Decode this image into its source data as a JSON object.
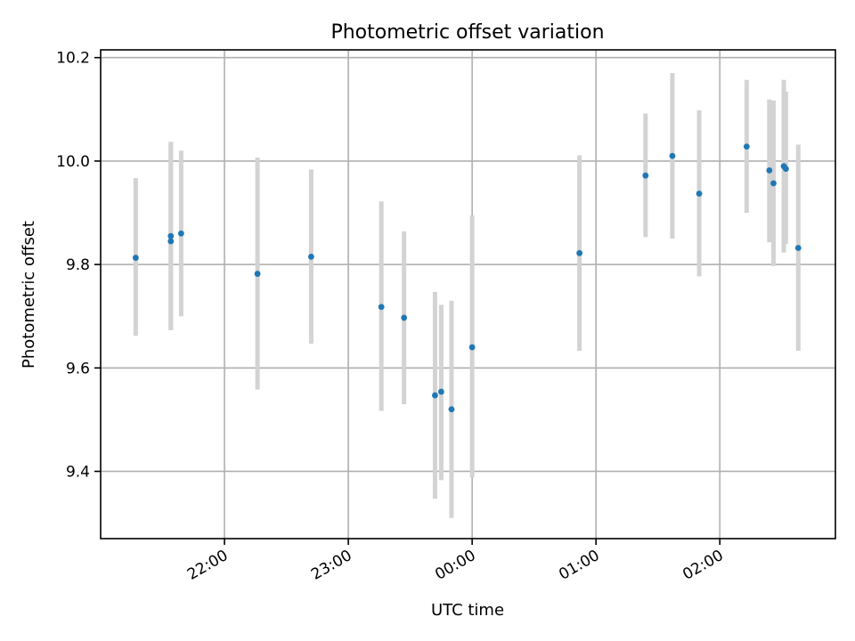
{
  "chart_data": {
    "type": "scatter",
    "title": "Photometric offset variation",
    "xlabel": "UTC time",
    "ylabel": "Photometric offset",
    "x_axis": {
      "kind": "time",
      "start": "21:00",
      "end": "02:56",
      "ticks": [
        "22:00",
        "23:00",
        "00:00",
        "01:00",
        "02:00"
      ],
      "tick_label_rotation_deg": 30
    },
    "ylim": [
      9.27,
      10.215
    ],
    "y_ticks": [
      9.4,
      9.6,
      9.8,
      10.0,
      10.2
    ],
    "y_tick_labels": [
      "9.4",
      "9.6",
      "9.8",
      "10.0",
      "10.2"
    ],
    "grid": true,
    "colors": {
      "point": "#1f77b4",
      "errorbar": "#d3d3d3",
      "grid": "#b0b0b0"
    },
    "series": [
      {
        "points": [
          {
            "x": "21:17",
            "y": 9.813,
            "ylow": 9.662,
            "yhigh": 9.967
          },
          {
            "x": "21:34",
            "y": 9.855,
            "ylow": 9.673,
            "yhigh": 10.037
          },
          {
            "x": "21:34",
            "y": 9.845,
            "ylow": 9.673,
            "yhigh": 10.037
          },
          {
            "x": "21:39",
            "y": 9.86,
            "ylow": 9.7,
            "yhigh": 10.02
          },
          {
            "x": "22:16",
            "y": 9.782,
            "ylow": 9.558,
            "yhigh": 10.007
          },
          {
            "x": "22:42",
            "y": 9.815,
            "ylow": 9.647,
            "yhigh": 9.984
          },
          {
            "x": "23:16",
            "y": 9.718,
            "ylow": 9.517,
            "yhigh": 9.922
          },
          {
            "x": "23:27",
            "y": 9.697,
            "ylow": 9.53,
            "yhigh": 9.864
          },
          {
            "x": "23:42",
            "y": 9.547,
            "ylow": 9.347,
            "yhigh": 9.747
          },
          {
            "x": "23:45",
            "y": 9.554,
            "ylow": 9.383,
            "yhigh": 9.722
          },
          {
            "x": "23:50",
            "y": 9.52,
            "ylow": 9.31,
            "yhigh": 9.73
          },
          {
            "x": "00:00",
            "y": 9.64,
            "ylow": 9.388,
            "yhigh": 9.895
          },
          {
            "x": "00:52",
            "y": 9.822,
            "ylow": 9.633,
            "yhigh": 10.011
          },
          {
            "x": "01:24",
            "y": 9.972,
            "ylow": 9.853,
            "yhigh": 10.092
          },
          {
            "x": "01:37",
            "y": 10.01,
            "ylow": 9.85,
            "yhigh": 10.17
          },
          {
            "x": "01:50",
            "y": 9.937,
            "ylow": 9.777,
            "yhigh": 10.098
          },
          {
            "x": "02:13",
            "y": 10.028,
            "ylow": 9.9,
            "yhigh": 10.157
          },
          {
            "x": "02:24",
            "y": 9.982,
            "ylow": 9.843,
            "yhigh": 10.119
          },
          {
            "x": "02:26",
            "y": 9.957,
            "ylow": 9.797,
            "yhigh": 10.117
          },
          {
            "x": "02:31",
            "y": 9.99,
            "ylow": 9.823,
            "yhigh": 10.157
          },
          {
            "x": "02:32",
            "y": 9.985,
            "ylow": 9.84,
            "yhigh": 10.134
          },
          {
            "x": "02:38",
            "y": 9.832,
            "ylow": 9.633,
            "yhigh": 10.032
          }
        ]
      }
    ]
  }
}
